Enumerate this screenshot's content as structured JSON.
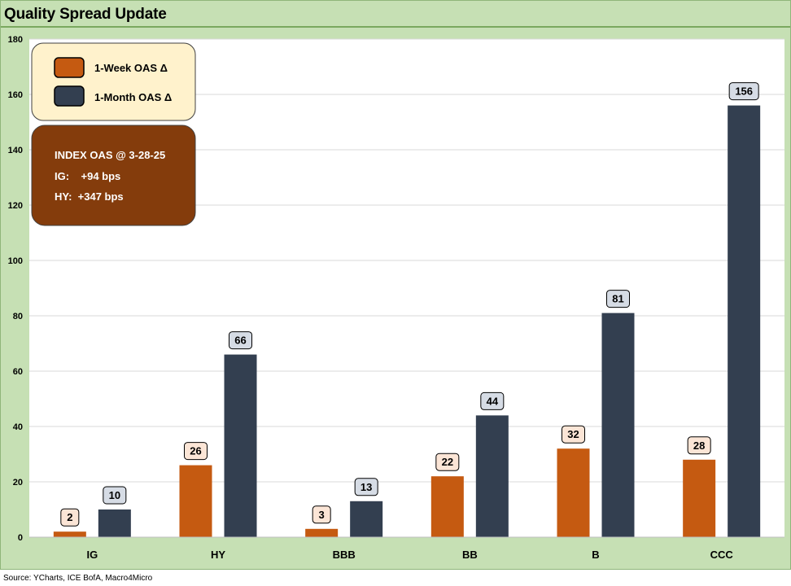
{
  "title": "Quality Spread Update",
  "source": "Source: YCharts, ICE BofA, Macro4Micro",
  "legend": {
    "items": [
      {
        "label": "1-Week OAS Δ",
        "color": "#c55a11"
      },
      {
        "label": "1-Month OAS Δ",
        "color": "#333f50"
      }
    ]
  },
  "info_box": {
    "heading": "INDEX OAS @ 3-28-25",
    "lines": [
      "IG:    +94 bps",
      "HY:  +347 bps"
    ]
  },
  "colors": {
    "week": "#c55a11",
    "month": "#333f50",
    "week_label_bg": "#fbe5d6",
    "month_label_bg": "#d6dce5",
    "legend_bg": "#fff2cc",
    "info_bg": "#843c0c",
    "plot_bg": "#ffffff",
    "grid": "#d9d9d9"
  },
  "chart_data": {
    "type": "bar",
    "categories": [
      "IG",
      "HY",
      "BBB",
      "BB",
      "B",
      "CCC"
    ],
    "series": [
      {
        "name": "1-Week OAS Δ",
        "values": [
          2,
          26,
          3,
          22,
          32,
          28
        ]
      },
      {
        "name": "1-Month OAS Δ",
        "values": [
          10,
          66,
          13,
          44,
          81,
          156
        ]
      }
    ],
    "ylim": [
      0,
      180
    ],
    "yticks": [
      0,
      20,
      40,
      60,
      80,
      100,
      120,
      140,
      160,
      180
    ],
    "grid": true,
    "legend_position": "top-left"
  }
}
